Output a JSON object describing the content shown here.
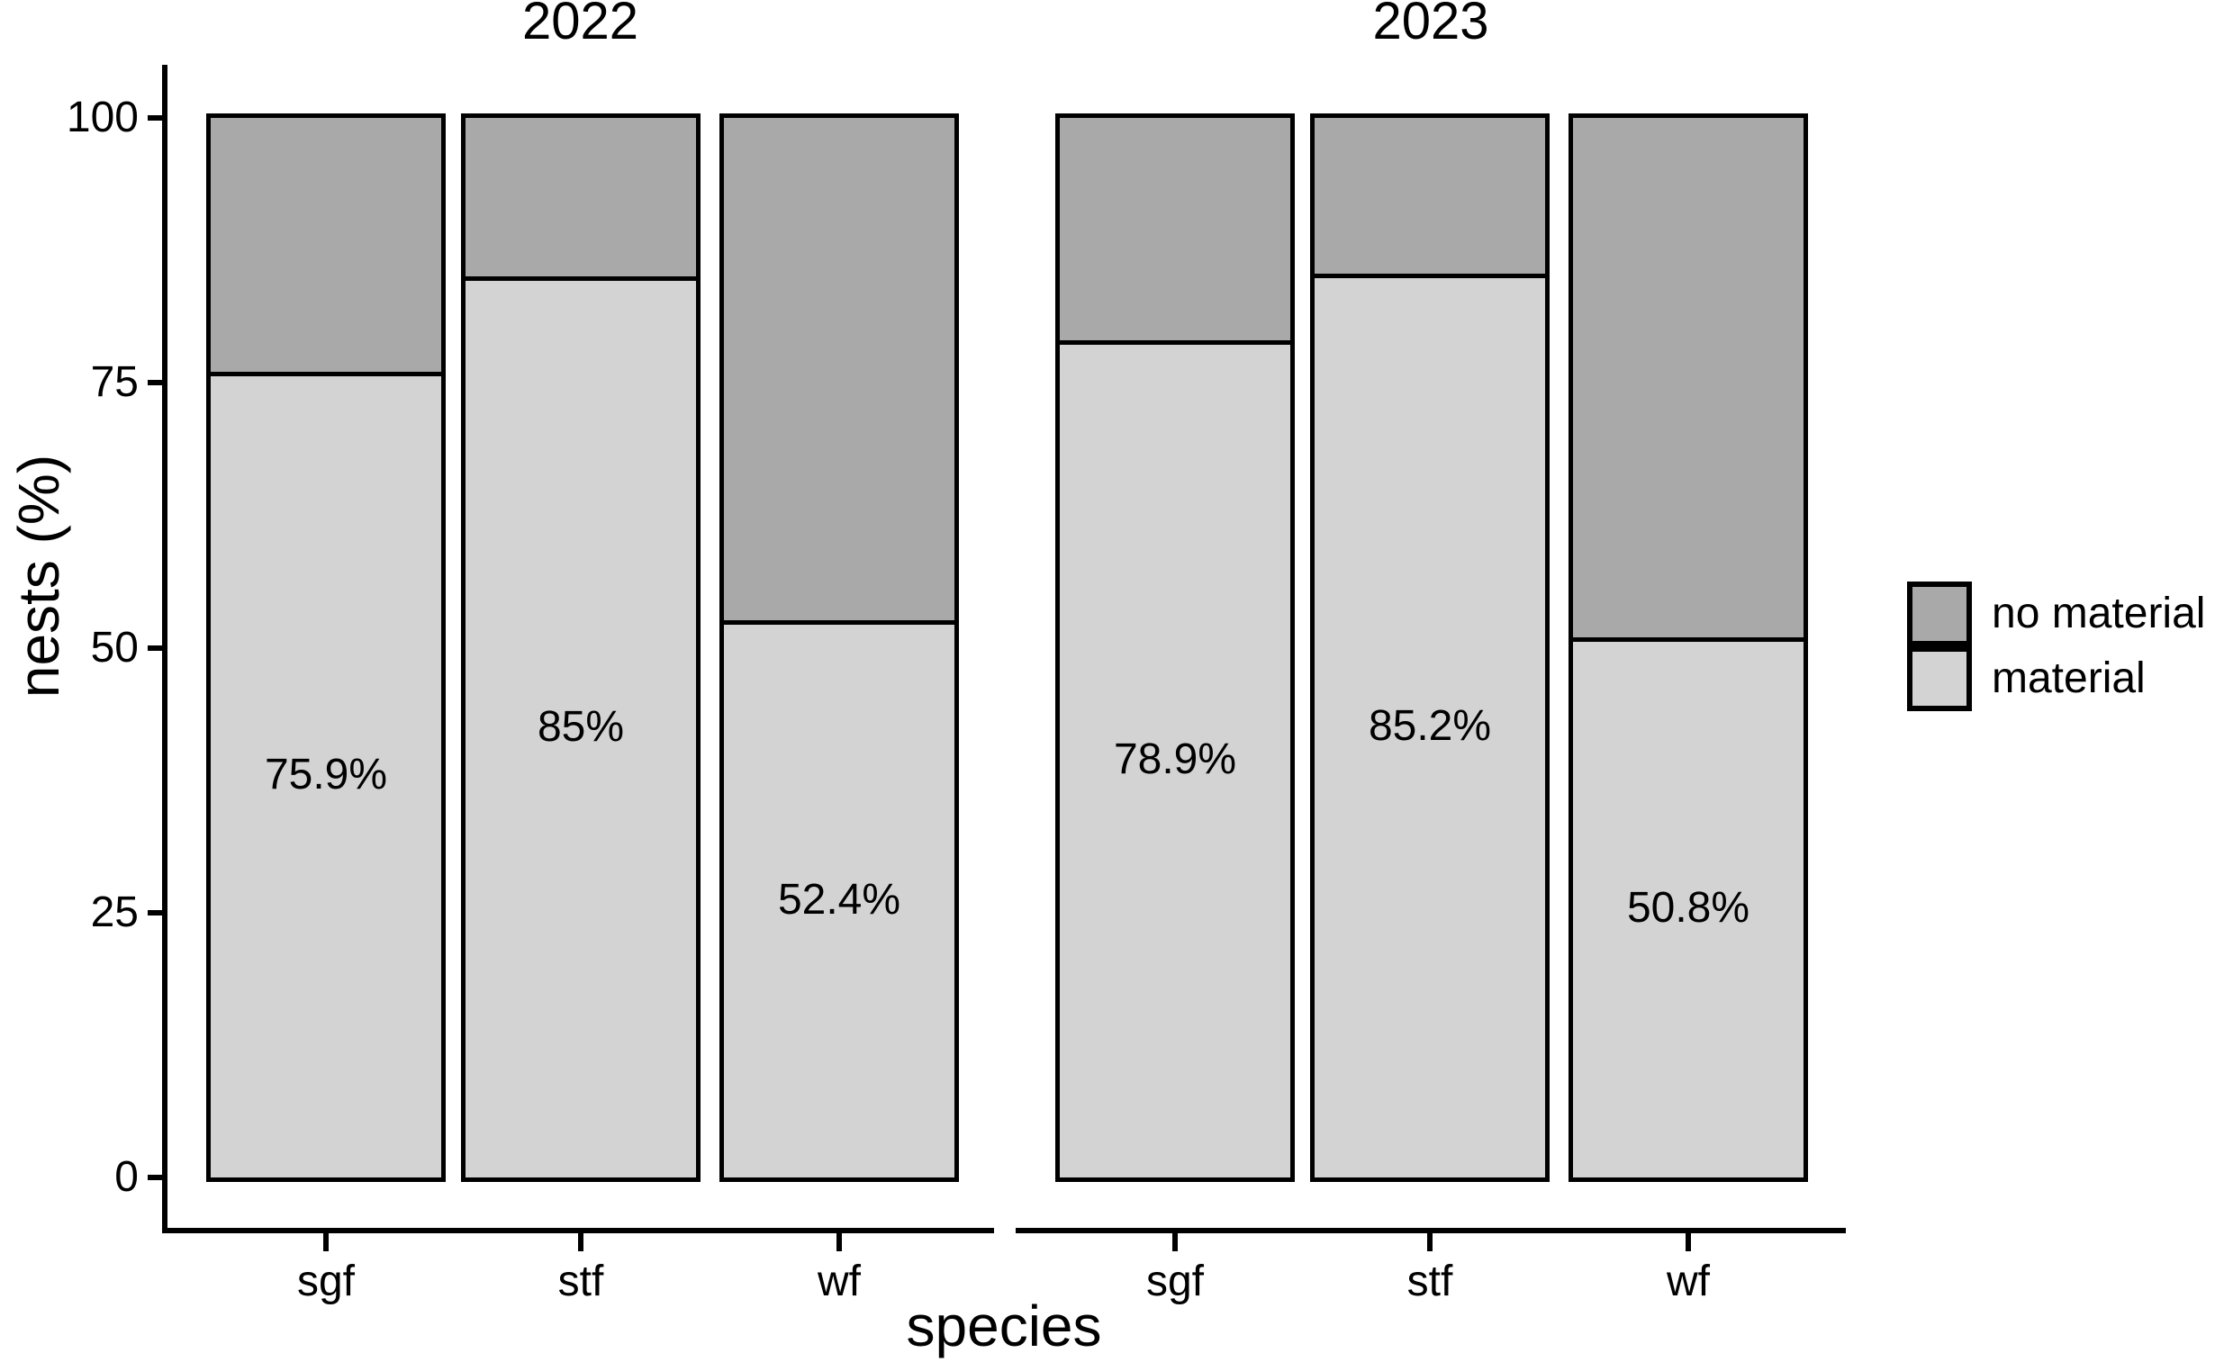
{
  "chart_data": {
    "type": "bar",
    "stacked": true,
    "unit": "%",
    "xlabel": "species",
    "ylabel": "nests (%)",
    "ylim": [
      0,
      100
    ],
    "yticks": [
      0,
      25,
      50,
      75,
      100
    ],
    "grid": false,
    "legend_position": "right",
    "background_color": "#ffffff",
    "outline_color": "#000000",
    "facets": [
      {
        "label": "2022",
        "categories": [
          "sgf",
          "stf",
          "wf"
        ],
        "series": [
          {
            "name": "material",
            "color": "#d3d3d3",
            "values": [
              75.9,
              85,
              52.4
            ]
          },
          {
            "name": "no material",
            "color": "#a9a9a9",
            "values": [
              24.1,
              15,
              47.6
            ]
          }
        ],
        "bar_labels": [
          "75.9%",
          "85%",
          "52.4%"
        ]
      },
      {
        "label": "2023",
        "categories": [
          "sgf",
          "stf",
          "wf"
        ],
        "series": [
          {
            "name": "material",
            "color": "#d3d3d3",
            "values": [
              78.9,
              85.2,
              50.8
            ]
          },
          {
            "name": "no material",
            "color": "#a9a9a9",
            "values": [
              21.1,
              14.8,
              49.2
            ]
          }
        ],
        "bar_labels": [
          "78.9%",
          "85.2%",
          "50.8%"
        ]
      }
    ],
    "legend": [
      {
        "label": "no material",
        "color": "#a9a9a9"
      },
      {
        "label": "material",
        "color": "#d3d3d3"
      }
    ]
  }
}
